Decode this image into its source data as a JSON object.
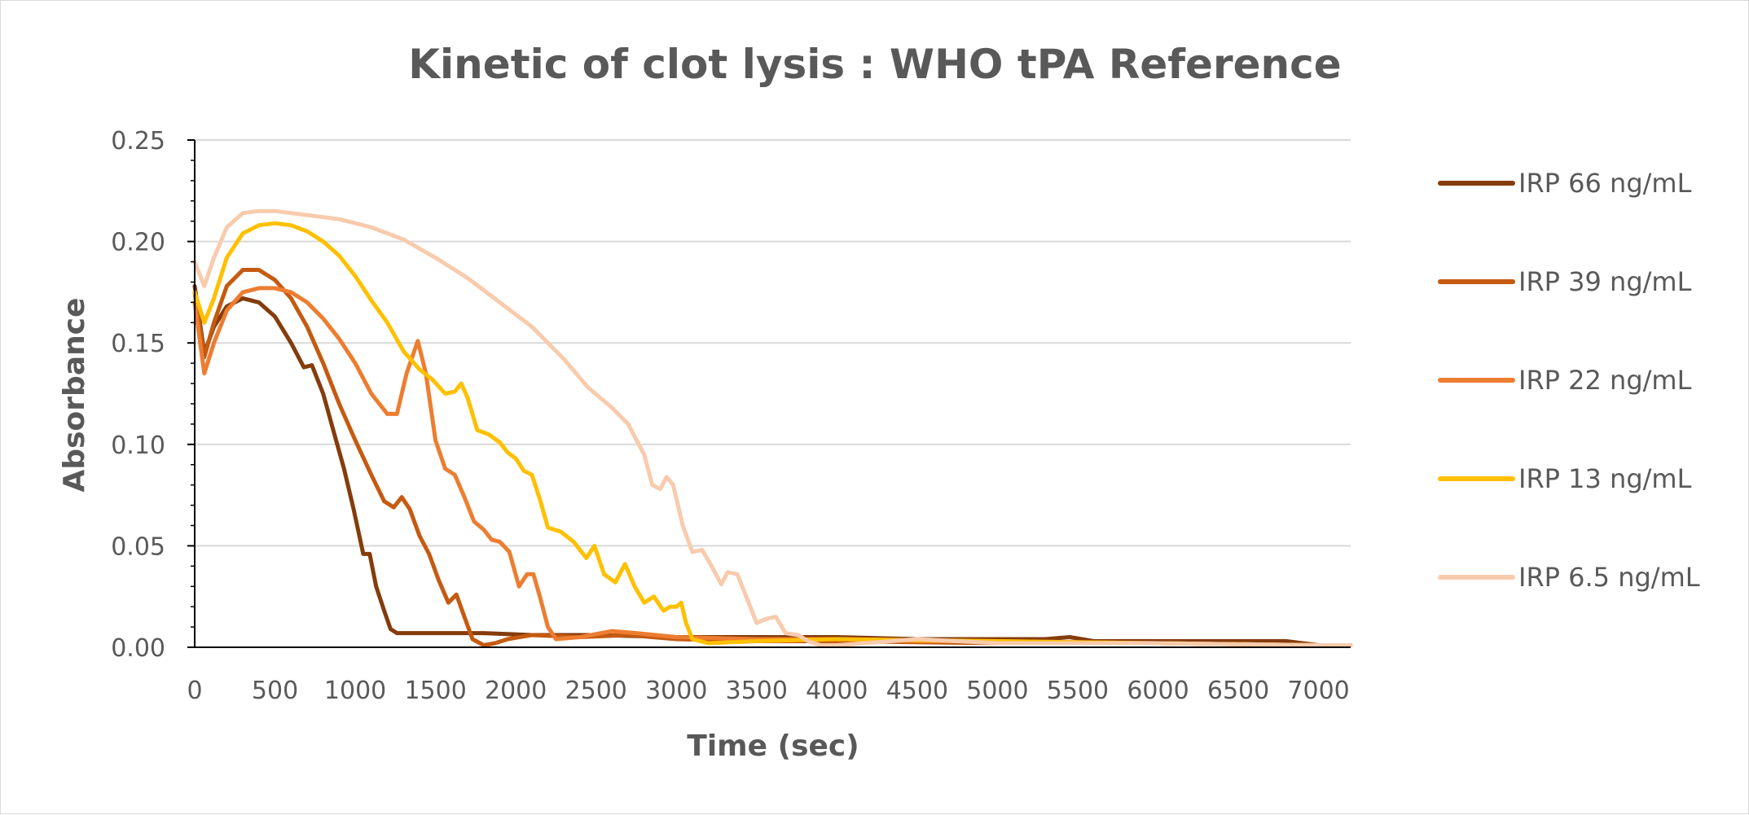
{
  "chart_data": {
    "type": "line",
    "title": "Kinetic of clot lysis : WHO tPA Reference",
    "xlabel": "Time (sec)",
    "ylabel": "Absorbance",
    "xlim": [
      0,
      7200
    ],
    "ylim": [
      0,
      0.25
    ],
    "x_ticks": [
      0,
      500,
      1000,
      1500,
      2000,
      2500,
      3000,
      3500,
      4000,
      4500,
      5000,
      5500,
      6000,
      6500,
      7000
    ],
    "x_tick_labels": [
      "0",
      "500",
      "1000",
      "1500",
      "2000",
      "2500",
      "3000",
      "3500",
      "4000",
      "4500",
      "5000",
      "5500",
      "6000",
      "6500",
      "7000"
    ],
    "y_ticks": [
      0,
      0.05,
      0.1,
      0.15,
      0.2,
      0.25
    ],
    "y_tick_labels": [
      "0.00",
      "0.05",
      "0.10",
      "0.15",
      "0.20",
      "0.25"
    ],
    "grid": "horizontal",
    "legend_position": "right",
    "series": [
      {
        "name": "IRP 66 ng/mL",
        "color": "#843c0c",
        "points": [
          [
            0,
            0.178
          ],
          [
            60,
            0.145
          ],
          [
            120,
            0.158
          ],
          [
            200,
            0.168
          ],
          [
            300,
            0.172
          ],
          [
            400,
            0.17
          ],
          [
            500,
            0.163
          ],
          [
            600,
            0.15
          ],
          [
            680,
            0.138
          ],
          [
            730,
            0.139
          ],
          [
            800,
            0.125
          ],
          [
            870,
            0.105
          ],
          [
            930,
            0.088
          ],
          [
            990,
            0.068
          ],
          [
            1050,
            0.046
          ],
          [
            1090,
            0.046
          ],
          [
            1130,
            0.03
          ],
          [
            1180,
            0.018
          ],
          [
            1220,
            0.009
          ],
          [
            1260,
            0.007
          ],
          [
            1300,
            0.007
          ],
          [
            1500,
            0.007
          ],
          [
            1800,
            0.007
          ],
          [
            2100,
            0.006
          ],
          [
            2500,
            0.006
          ],
          [
            3000,
            0.005
          ],
          [
            3500,
            0.005
          ],
          [
            4000,
            0.005
          ],
          [
            4500,
            0.004
          ],
          [
            5000,
            0.004
          ],
          [
            5300,
            0.004
          ],
          [
            5450,
            0.005
          ],
          [
            5600,
            0.003
          ],
          [
            6000,
            0.003
          ],
          [
            6500,
            0.003
          ],
          [
            6800,
            0.003
          ],
          [
            7000,
            0.001
          ],
          [
            7200,
            0.001
          ]
        ]
      },
      {
        "name": "IRP 39 ng/mL",
        "color": "#c55a11",
        "points": [
          [
            0,
            0.175
          ],
          [
            60,
            0.143
          ],
          [
            120,
            0.16
          ],
          [
            200,
            0.178
          ],
          [
            300,
            0.186
          ],
          [
            400,
            0.186
          ],
          [
            500,
            0.181
          ],
          [
            600,
            0.172
          ],
          [
            700,
            0.158
          ],
          [
            800,
            0.14
          ],
          [
            900,
            0.12
          ],
          [
            1000,
            0.102
          ],
          [
            1100,
            0.085
          ],
          [
            1180,
            0.072
          ],
          [
            1240,
            0.069
          ],
          [
            1290,
            0.074
          ],
          [
            1340,
            0.068
          ],
          [
            1400,
            0.055
          ],
          [
            1460,
            0.046
          ],
          [
            1520,
            0.033
          ],
          [
            1580,
            0.022
          ],
          [
            1630,
            0.026
          ],
          [
            1680,
            0.015
          ],
          [
            1730,
            0.004
          ],
          [
            1800,
            0.001
          ],
          [
            1870,
            0.002
          ],
          [
            1950,
            0.004
          ],
          [
            2100,
            0.006
          ],
          [
            2400,
            0.005
          ],
          [
            2700,
            0.006
          ],
          [
            3000,
            0.004
          ],
          [
            3500,
            0.003
          ],
          [
            4000,
            0.003
          ],
          [
            5000,
            0.002
          ],
          [
            6000,
            0.002
          ],
          [
            7000,
            0.001
          ],
          [
            7200,
            0.001
          ]
        ]
      },
      {
        "name": "IRP 22 ng/mL",
        "color": "#ed7d31",
        "points": [
          [
            0,
            0.17
          ],
          [
            60,
            0.135
          ],
          [
            120,
            0.15
          ],
          [
            200,
            0.166
          ],
          [
            300,
            0.175
          ],
          [
            400,
            0.177
          ],
          [
            500,
            0.177
          ],
          [
            600,
            0.175
          ],
          [
            700,
            0.17
          ],
          [
            800,
            0.162
          ],
          [
            900,
            0.152
          ],
          [
            1000,
            0.14
          ],
          [
            1100,
            0.125
          ],
          [
            1200,
            0.115
          ],
          [
            1260,
            0.115
          ],
          [
            1320,
            0.135
          ],
          [
            1390,
            0.151
          ],
          [
            1440,
            0.135
          ],
          [
            1500,
            0.102
          ],
          [
            1560,
            0.088
          ],
          [
            1620,
            0.085
          ],
          [
            1680,
            0.074
          ],
          [
            1740,
            0.062
          ],
          [
            1800,
            0.058
          ],
          [
            1850,
            0.053
          ],
          [
            1900,
            0.052
          ],
          [
            1960,
            0.047
          ],
          [
            2020,
            0.03
          ],
          [
            2070,
            0.036
          ],
          [
            2110,
            0.036
          ],
          [
            2150,
            0.025
          ],
          [
            2200,
            0.01
          ],
          [
            2250,
            0.004
          ],
          [
            2400,
            0.005
          ],
          [
            2600,
            0.008
          ],
          [
            2750,
            0.007
          ],
          [
            3000,
            0.005
          ],
          [
            3500,
            0.004
          ],
          [
            4000,
            0.004
          ],
          [
            4500,
            0.003
          ],
          [
            5000,
            0.003
          ],
          [
            6000,
            0.002
          ],
          [
            7000,
            0.001
          ],
          [
            7200,
            0.001
          ]
        ]
      },
      {
        "name": "IRP 13 ng/mL",
        "color": "#ffc000",
        "points": [
          [
            0,
            0.175
          ],
          [
            60,
            0.16
          ],
          [
            120,
            0.172
          ],
          [
            200,
            0.192
          ],
          [
            300,
            0.204
          ],
          [
            400,
            0.208
          ],
          [
            500,
            0.209
          ],
          [
            600,
            0.208
          ],
          [
            700,
            0.205
          ],
          [
            800,
            0.2
          ],
          [
            900,
            0.193
          ],
          [
            1000,
            0.183
          ],
          [
            1100,
            0.171
          ],
          [
            1200,
            0.16
          ],
          [
            1300,
            0.146
          ],
          [
            1400,
            0.137
          ],
          [
            1480,
            0.132
          ],
          [
            1560,
            0.125
          ],
          [
            1620,
            0.126
          ],
          [
            1660,
            0.13
          ],
          [
            1700,
            0.123
          ],
          [
            1760,
            0.107
          ],
          [
            1830,
            0.105
          ],
          [
            1900,
            0.101
          ],
          [
            1950,
            0.096
          ],
          [
            2000,
            0.093
          ],
          [
            2050,
            0.087
          ],
          [
            2100,
            0.085
          ],
          [
            2150,
            0.073
          ],
          [
            2200,
            0.059
          ],
          [
            2280,
            0.057
          ],
          [
            2360,
            0.052
          ],
          [
            2440,
            0.044
          ],
          [
            2490,
            0.05
          ],
          [
            2550,
            0.036
          ],
          [
            2620,
            0.032
          ],
          [
            2680,
            0.041
          ],
          [
            2740,
            0.03
          ],
          [
            2800,
            0.022
          ],
          [
            2860,
            0.025
          ],
          [
            2920,
            0.018
          ],
          [
            2960,
            0.02
          ],
          [
            3000,
            0.02
          ],
          [
            3030,
            0.022
          ],
          [
            3060,
            0.012
          ],
          [
            3100,
            0.004
          ],
          [
            3200,
            0.002
          ],
          [
            3500,
            0.003
          ],
          [
            4000,
            0.004
          ],
          [
            5000,
            0.003
          ],
          [
            6000,
            0.002
          ],
          [
            7000,
            0.001
          ],
          [
            7200,
            0.001
          ]
        ]
      },
      {
        "name": "IRP 6.5 ng/mL",
        "color": "#f8cbad",
        "points": [
          [
            0,
            0.19
          ],
          [
            60,
            0.178
          ],
          [
            120,
            0.192
          ],
          [
            200,
            0.207
          ],
          [
            300,
            0.214
          ],
          [
            400,
            0.215
          ],
          [
            500,
            0.215
          ],
          [
            700,
            0.213
          ],
          [
            900,
            0.211
          ],
          [
            1100,
            0.207
          ],
          [
            1300,
            0.201
          ],
          [
            1500,
            0.192
          ],
          [
            1700,
            0.182
          ],
          [
            1900,
            0.17
          ],
          [
            2100,
            0.158
          ],
          [
            2300,
            0.142
          ],
          [
            2450,
            0.128
          ],
          [
            2600,
            0.118
          ],
          [
            2700,
            0.11
          ],
          [
            2800,
            0.095
          ],
          [
            2850,
            0.08
          ],
          [
            2900,
            0.078
          ],
          [
            2940,
            0.084
          ],
          [
            2980,
            0.08
          ],
          [
            3040,
            0.06
          ],
          [
            3100,
            0.047
          ],
          [
            3160,
            0.048
          ],
          [
            3220,
            0.04
          ],
          [
            3280,
            0.031
          ],
          [
            3320,
            0.037
          ],
          [
            3380,
            0.036
          ],
          [
            3440,
            0.024
          ],
          [
            3500,
            0.012
          ],
          [
            3560,
            0.014
          ],
          [
            3620,
            0.015
          ],
          [
            3680,
            0.007
          ],
          [
            3760,
            0.006
          ],
          [
            3820,
            0.003
          ],
          [
            3900,
            0.001
          ],
          [
            4000,
            0.001
          ],
          [
            4500,
            0.004
          ],
          [
            5000,
            0.002
          ],
          [
            6000,
            0.002
          ],
          [
            7000,
            0.001
          ],
          [
            7200,
            0.001
          ]
        ]
      }
    ]
  }
}
